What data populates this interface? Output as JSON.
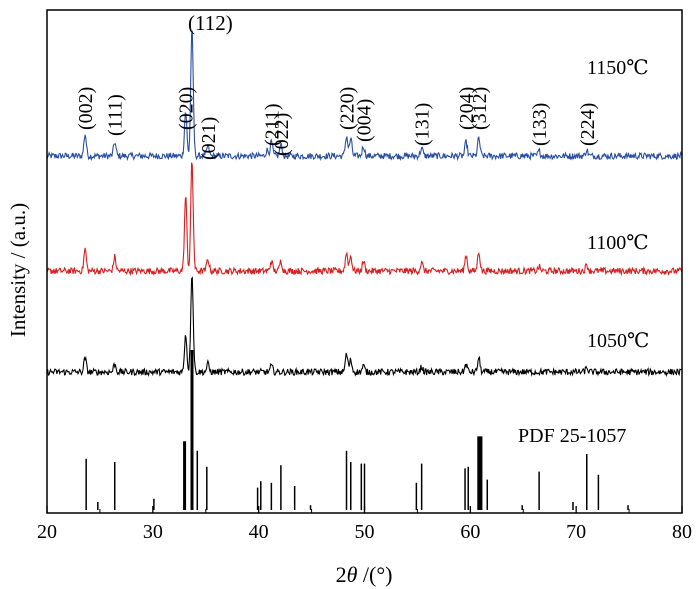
{
  "chart_data": {
    "type": "line",
    "xlabel_prefix": "2",
    "xlabel_theta": "θ",
    "xlabel_suffix": " /(°)",
    "ylabel": "Intensity / (a.u.)",
    "xlim": [
      20,
      80
    ],
    "x_ticks": [
      20,
      30,
      40,
      50,
      60,
      70,
      80
    ],
    "grid": false,
    "series": [
      {
        "name": "1150℃",
        "color": "#2a4fa0",
        "baseline": 156,
        "noise": 3.2,
        "peaks": [
          [
            23.6,
            22
          ],
          [
            26.4,
            14
          ],
          [
            33.1,
            45
          ],
          [
            33.7,
            128
          ],
          [
            35.2,
            10
          ],
          [
            40.8,
            6
          ],
          [
            41.2,
            14
          ],
          [
            42.1,
            11
          ],
          [
            48.3,
            20
          ],
          [
            48.7,
            17
          ],
          [
            49.9,
            10
          ],
          [
            55.4,
            8
          ],
          [
            59.6,
            14
          ],
          [
            60.8,
            18
          ],
          [
            66.5,
            5
          ],
          [
            71.0,
            6
          ]
        ]
      },
      {
        "name": "1100℃",
        "color": "#d42020",
        "baseline": 271,
        "noise": 3.2,
        "peaks": [
          [
            23.6,
            22
          ],
          [
            26.4,
            14
          ],
          [
            33.1,
            75
          ],
          [
            33.7,
            110
          ],
          [
            35.2,
            12
          ],
          [
            41.2,
            10
          ],
          [
            42.1,
            10
          ],
          [
            48.3,
            18
          ],
          [
            48.7,
            15
          ],
          [
            49.9,
            10
          ],
          [
            55.4,
            8
          ],
          [
            59.6,
            16
          ],
          [
            60.8,
            20
          ],
          [
            66.5,
            4
          ],
          [
            71.0,
            6
          ]
        ]
      },
      {
        "name": "1050℃",
        "color": "#000000",
        "baseline": 372,
        "noise": 3.2,
        "peaks": [
          [
            23.6,
            14
          ],
          [
            26.4,
            8
          ],
          [
            33.1,
            38
          ],
          [
            33.7,
            100
          ],
          [
            35.2,
            8
          ],
          [
            41.2,
            6
          ],
          [
            48.3,
            18
          ],
          [
            48.7,
            12
          ],
          [
            49.9,
            6
          ],
          [
            55.4,
            5
          ],
          [
            59.6,
            8
          ],
          [
            60.8,
            14
          ],
          [
            71.0,
            4
          ]
        ]
      }
    ],
    "series_labels": [
      {
        "text": "1150℃",
        "x": 78.5,
        "series": 0
      },
      {
        "text": "1100℃",
        "x": 78.5,
        "series": 1
      },
      {
        "text": "1050℃",
        "x": 78.5,
        "series": 2
      }
    ],
    "reference": {
      "name": "PDF 25-1057",
      "sticks": [
        [
          23.7,
          32
        ],
        [
          24.8,
          5
        ],
        [
          26.4,
          30
        ],
        [
          30.1,
          7
        ],
        [
          33.0,
          43
        ],
        [
          33.7,
          100
        ],
        [
          34.2,
          37
        ],
        [
          35.1,
          27
        ],
        [
          39.9,
          14
        ],
        [
          40.2,
          18
        ],
        [
          41.2,
          17
        ],
        [
          42.1,
          28
        ],
        [
          43.4,
          15
        ],
        [
          44.9,
          3
        ],
        [
          48.3,
          37
        ],
        [
          48.7,
          30
        ],
        [
          49.7,
          29
        ],
        [
          50.0,
          29
        ],
        [
          54.9,
          17
        ],
        [
          55.4,
          29
        ],
        [
          59.5,
          26
        ],
        [
          59.8,
          27
        ],
        [
          60.8,
          46
        ],
        [
          61.0,
          46
        ],
        [
          61.6,
          19
        ],
        [
          64.9,
          3
        ],
        [
          66.5,
          24
        ],
        [
          69.7,
          5
        ],
        [
          71.0,
          35
        ],
        [
          72.1,
          22
        ],
        [
          74.9,
          3
        ]
      ]
    },
    "miller_indices": [
      {
        "label": "(002)",
        "x": 23.6
      },
      {
        "label": "(111)",
        "x": 26.4
      },
      {
        "label": "(020)",
        "x": 33.1
      },
      {
        "label": "(112)",
        "x": 33.7
      },
      {
        "label": "(021)",
        "x": 35.2
      },
      {
        "label": "(211)",
        "x": 41.2
      },
      {
        "label": "(022)",
        "x": 42.1
      },
      {
        "label": "(220)",
        "x": 48.3
      },
      {
        "label": "(004)",
        "x": 49.9
      },
      {
        "label": "(131)",
        "x": 55.4
      },
      {
        "label": "(204)",
        "x": 59.6
      },
      {
        "label": "(312)",
        "x": 60.8
      },
      {
        "label": "(133)",
        "x": 66.5
      },
      {
        "label": "(224)",
        "x": 71.0
      }
    ]
  }
}
